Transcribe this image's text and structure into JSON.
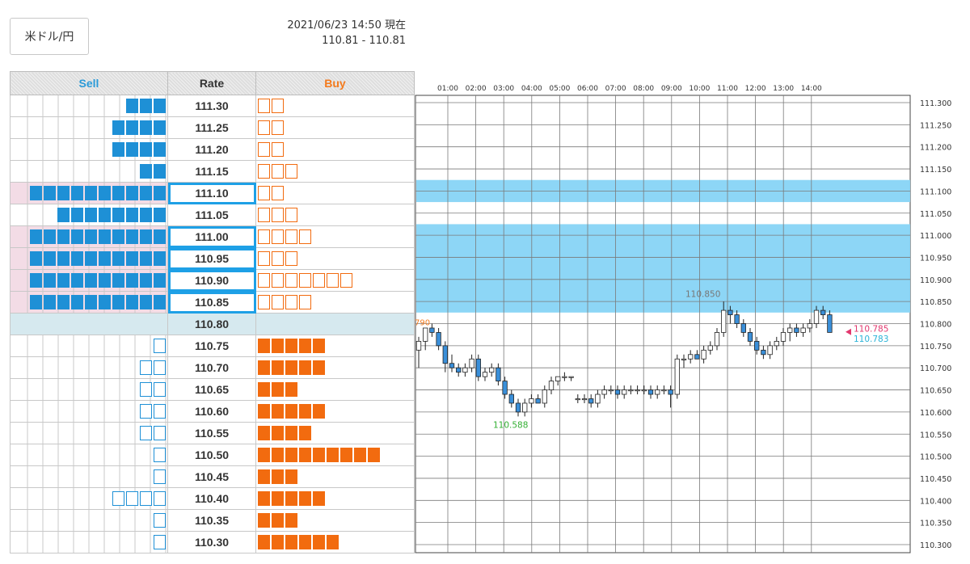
{
  "header": {
    "pair_label": "米ドル/円",
    "timestamp": "2021/06/23 14:50 現在",
    "bid_ask": "110.81 - 110.81"
  },
  "table": {
    "columns": {
      "sell": "Sell",
      "rate": "Rate",
      "buy": "Buy"
    },
    "rows": [
      {
        "rate": "111.30",
        "sell_filled": 3,
        "sell_outline": 0,
        "buy_filled": 0,
        "buy_outline": 2,
        "highlight": false
      },
      {
        "rate": "111.25",
        "sell_filled": 4,
        "sell_outline": 0,
        "buy_filled": 0,
        "buy_outline": 2,
        "highlight": false
      },
      {
        "rate": "111.20",
        "sell_filled": 4,
        "sell_outline": 0,
        "buy_filled": 0,
        "buy_outline": 2,
        "highlight": false
      },
      {
        "rate": "111.15",
        "sell_filled": 2,
        "sell_outline": 0,
        "buy_filled": 0,
        "buy_outline": 3,
        "highlight": false
      },
      {
        "rate": "111.10",
        "sell_filled": 10,
        "sell_outline": 0,
        "buy_filled": 0,
        "buy_outline": 2,
        "highlight": true
      },
      {
        "rate": "111.05",
        "sell_filled": 8,
        "sell_outline": 0,
        "buy_filled": 0,
        "buy_outline": 3,
        "highlight": false
      },
      {
        "rate": "111.00",
        "sell_filled": 10,
        "sell_outline": 0,
        "buy_filled": 0,
        "buy_outline": 4,
        "highlight": true
      },
      {
        "rate": "110.95",
        "sell_filled": 10,
        "sell_outline": 0,
        "buy_filled": 0,
        "buy_outline": 3,
        "highlight": true
      },
      {
        "rate": "110.90",
        "sell_filled": 10,
        "sell_outline": 0,
        "buy_filled": 0,
        "buy_outline": 7,
        "highlight": true
      },
      {
        "rate": "110.85",
        "sell_filled": 10,
        "sell_outline": 0,
        "buy_filled": 0,
        "buy_outline": 4,
        "highlight": true
      },
      {
        "rate": "110.80",
        "sell_filled": 0,
        "sell_outline": 0,
        "buy_filled": 0,
        "buy_outline": 0,
        "highlight": false,
        "current": true
      },
      {
        "rate": "110.75",
        "sell_filled": 0,
        "sell_outline": 1,
        "buy_filled": 5,
        "buy_outline": 0,
        "highlight": false
      },
      {
        "rate": "110.70",
        "sell_filled": 0,
        "sell_outline": 2,
        "buy_filled": 5,
        "buy_outline": 0,
        "highlight": false
      },
      {
        "rate": "110.65",
        "sell_filled": 0,
        "sell_outline": 2,
        "buy_filled": 3,
        "buy_outline": 0,
        "highlight": false
      },
      {
        "rate": "110.60",
        "sell_filled": 0,
        "sell_outline": 2,
        "buy_filled": 5,
        "buy_outline": 0,
        "highlight": false
      },
      {
        "rate": "110.55",
        "sell_filled": 0,
        "sell_outline": 2,
        "buy_filled": 4,
        "buy_outline": 0,
        "highlight": false
      },
      {
        "rate": "110.50",
        "sell_filled": 0,
        "sell_outline": 1,
        "buy_filled": 9,
        "buy_outline": 0,
        "highlight": false
      },
      {
        "rate": "110.45",
        "sell_filled": 0,
        "sell_outline": 1,
        "buy_filled": 3,
        "buy_outline": 0,
        "highlight": false
      },
      {
        "rate": "110.40",
        "sell_filled": 0,
        "sell_outline": 4,
        "buy_filled": 5,
        "buy_outline": 0,
        "highlight": false
      },
      {
        "rate": "110.35",
        "sell_filled": 0,
        "sell_outline": 1,
        "buy_filled": 3,
        "buy_outline": 0,
        "highlight": false
      },
      {
        "rate": "110.30",
        "sell_filled": 0,
        "sell_outline": 1,
        "buy_filled": 6,
        "buy_outline": 0,
        "highlight": false
      }
    ]
  },
  "colors": {
    "sell_accent": "#2a9ad8",
    "buy_accent": "#f47a1c",
    "sell_block": "#1e90d6",
    "buy_block": "#f26b0f",
    "candle_up": "#ffffff",
    "candle_down": "#3a8fd9",
    "highlight_band": "#87d4f5",
    "current_row": "#d6e9ef",
    "sell_highlight_row": "#f3dce6"
  },
  "chart_data": {
    "type": "candlestick",
    "time_labels": [
      "01:00",
      "02:00",
      "03:00",
      "04:00",
      "05:00",
      "06:00",
      "07:00",
      "08:00",
      "09:00",
      "10:00",
      "11:00",
      "12:00",
      "13:00",
      "14:00"
    ],
    "y_tick_labels": [
      "111.300",
      "111.250",
      "111.200",
      "111.150",
      "111.100",
      "111.050",
      "111.000",
      "110.950",
      "110.900",
      "110.850",
      "110.800",
      "110.750",
      "110.700",
      "110.650",
      "110.600",
      "110.550",
      "110.500",
      "110.450",
      "110.400",
      "110.350",
      "110.300"
    ],
    "ylim": [
      110.3,
      111.3
    ],
    "highlight_bands": [
      [
        111.075,
        111.125
      ],
      [
        110.825,
        111.025
      ]
    ],
    "annotations": {
      "left_edge_value": "790",
      "high_label": "110.850",
      "low_label": "110.588",
      "price_a": "110.785",
      "price_b": "110.783"
    },
    "candles": [
      {
        "o": 110.74,
        "h": 110.77,
        "l": 110.7,
        "c": 110.76
      },
      {
        "o": 110.76,
        "h": 110.79,
        "l": 110.74,
        "c": 110.79
      },
      {
        "o": 110.79,
        "h": 110.8,
        "l": 110.77,
        "c": 110.78
      },
      {
        "o": 110.78,
        "h": 110.79,
        "l": 110.74,
        "c": 110.75
      },
      {
        "o": 110.75,
        "h": 110.76,
        "l": 110.69,
        "c": 110.71
      },
      {
        "o": 110.71,
        "h": 110.73,
        "l": 110.69,
        "c": 110.7
      },
      {
        "o": 110.7,
        "h": 110.71,
        "l": 110.68,
        "c": 110.69
      },
      {
        "o": 110.69,
        "h": 110.71,
        "l": 110.68,
        "c": 110.7
      },
      {
        "o": 110.7,
        "h": 110.73,
        "l": 110.69,
        "c": 110.72
      },
      {
        "o": 110.72,
        "h": 110.73,
        "l": 110.67,
        "c": 110.68
      },
      {
        "o": 110.68,
        "h": 110.7,
        "l": 110.67,
        "c": 110.69
      },
      {
        "o": 110.69,
        "h": 110.71,
        "l": 110.68,
        "c": 110.7
      },
      {
        "o": 110.7,
        "h": 110.71,
        "l": 110.66,
        "c": 110.67
      },
      {
        "o": 110.67,
        "h": 110.68,
        "l": 110.63,
        "c": 110.64
      },
      {
        "o": 110.64,
        "h": 110.65,
        "l": 110.61,
        "c": 110.62
      },
      {
        "o": 110.62,
        "h": 110.63,
        "l": 110.59,
        "c": 110.6
      },
      {
        "o": 110.6,
        "h": 110.63,
        "l": 110.59,
        "c": 110.62
      },
      {
        "o": 110.62,
        "h": 110.64,
        "l": 110.61,
        "c": 110.63
      },
      {
        "o": 110.63,
        "h": 110.64,
        "l": 110.62,
        "c": 110.62
      },
      {
        "o": 110.62,
        "h": 110.66,
        "l": 110.61,
        "c": 110.65
      },
      {
        "o": 110.65,
        "h": 110.68,
        "l": 110.64,
        "c": 110.67
      },
      {
        "o": 110.67,
        "h": 110.68,
        "l": 110.66,
        "c": 110.68
      },
      {
        "o": 110.68,
        "h": 110.69,
        "l": 110.67,
        "c": 110.68
      },
      {
        "o": 110.68,
        "h": 110.68,
        "l": 110.67,
        "c": 110.68
      },
      {
        "o": 110.63,
        "h": 110.64,
        "l": 110.62,
        "c": 110.63
      },
      {
        "o": 110.63,
        "h": 110.64,
        "l": 110.62,
        "c": 110.63
      },
      {
        "o": 110.63,
        "h": 110.64,
        "l": 110.61,
        "c": 110.62
      },
      {
        "o": 110.62,
        "h": 110.65,
        "l": 110.61,
        "c": 110.64
      },
      {
        "o": 110.64,
        "h": 110.66,
        "l": 110.63,
        "c": 110.65
      },
      {
        "o": 110.65,
        "h": 110.66,
        "l": 110.64,
        "c": 110.65
      },
      {
        "o": 110.65,
        "h": 110.66,
        "l": 110.63,
        "c": 110.64
      },
      {
        "o": 110.64,
        "h": 110.66,
        "l": 110.63,
        "c": 110.65
      },
      {
        "o": 110.65,
        "h": 110.66,
        "l": 110.64,
        "c": 110.65
      },
      {
        "o": 110.65,
        "h": 110.66,
        "l": 110.64,
        "c": 110.65
      },
      {
        "o": 110.65,
        "h": 110.66,
        "l": 110.64,
        "c": 110.65
      },
      {
        "o": 110.65,
        "h": 110.66,
        "l": 110.63,
        "c": 110.64
      },
      {
        "o": 110.64,
        "h": 110.66,
        "l": 110.63,
        "c": 110.65
      },
      {
        "o": 110.65,
        "h": 110.66,
        "l": 110.64,
        "c": 110.65
      },
      {
        "o": 110.65,
        "h": 110.66,
        "l": 110.61,
        "c": 110.64
      },
      {
        "o": 110.64,
        "h": 110.73,
        "l": 110.63,
        "c": 110.72
      },
      {
        "o": 110.72,
        "h": 110.73,
        "l": 110.7,
        "c": 110.72
      },
      {
        "o": 110.72,
        "h": 110.74,
        "l": 110.71,
        "c": 110.73
      },
      {
        "o": 110.73,
        "h": 110.74,
        "l": 110.72,
        "c": 110.72
      },
      {
        "o": 110.72,
        "h": 110.75,
        "l": 110.71,
        "c": 110.74
      },
      {
        "o": 110.74,
        "h": 110.76,
        "l": 110.73,
        "c": 110.75
      },
      {
        "o": 110.75,
        "h": 110.79,
        "l": 110.74,
        "c": 110.78
      },
      {
        "o": 110.78,
        "h": 110.85,
        "l": 110.77,
        "c": 110.83
      },
      {
        "o": 110.83,
        "h": 110.84,
        "l": 110.8,
        "c": 110.82
      },
      {
        "o": 110.82,
        "h": 110.83,
        "l": 110.79,
        "c": 110.8
      },
      {
        "o": 110.8,
        "h": 110.81,
        "l": 110.77,
        "c": 110.78
      },
      {
        "o": 110.78,
        "h": 110.79,
        "l": 110.75,
        "c": 110.76
      },
      {
        "o": 110.76,
        "h": 110.77,
        "l": 110.73,
        "c": 110.74
      },
      {
        "o": 110.74,
        "h": 110.75,
        "l": 110.72,
        "c": 110.73
      },
      {
        "o": 110.73,
        "h": 110.76,
        "l": 110.72,
        "c": 110.75
      },
      {
        "o": 110.75,
        "h": 110.77,
        "l": 110.74,
        "c": 110.76
      },
      {
        "o": 110.76,
        "h": 110.79,
        "l": 110.75,
        "c": 110.78
      },
      {
        "o": 110.78,
        "h": 110.8,
        "l": 110.76,
        "c": 110.79
      },
      {
        "o": 110.79,
        "h": 110.8,
        "l": 110.77,
        "c": 110.78
      },
      {
        "o": 110.78,
        "h": 110.8,
        "l": 110.77,
        "c": 110.79
      },
      {
        "o": 110.79,
        "h": 110.81,
        "l": 110.78,
        "c": 110.8
      },
      {
        "o": 110.8,
        "h": 110.84,
        "l": 110.79,
        "c": 110.83
      },
      {
        "o": 110.83,
        "h": 110.84,
        "l": 110.81,
        "c": 110.82
      },
      {
        "o": 110.82,
        "h": 110.83,
        "l": 110.78,
        "c": 110.78
      }
    ]
  }
}
